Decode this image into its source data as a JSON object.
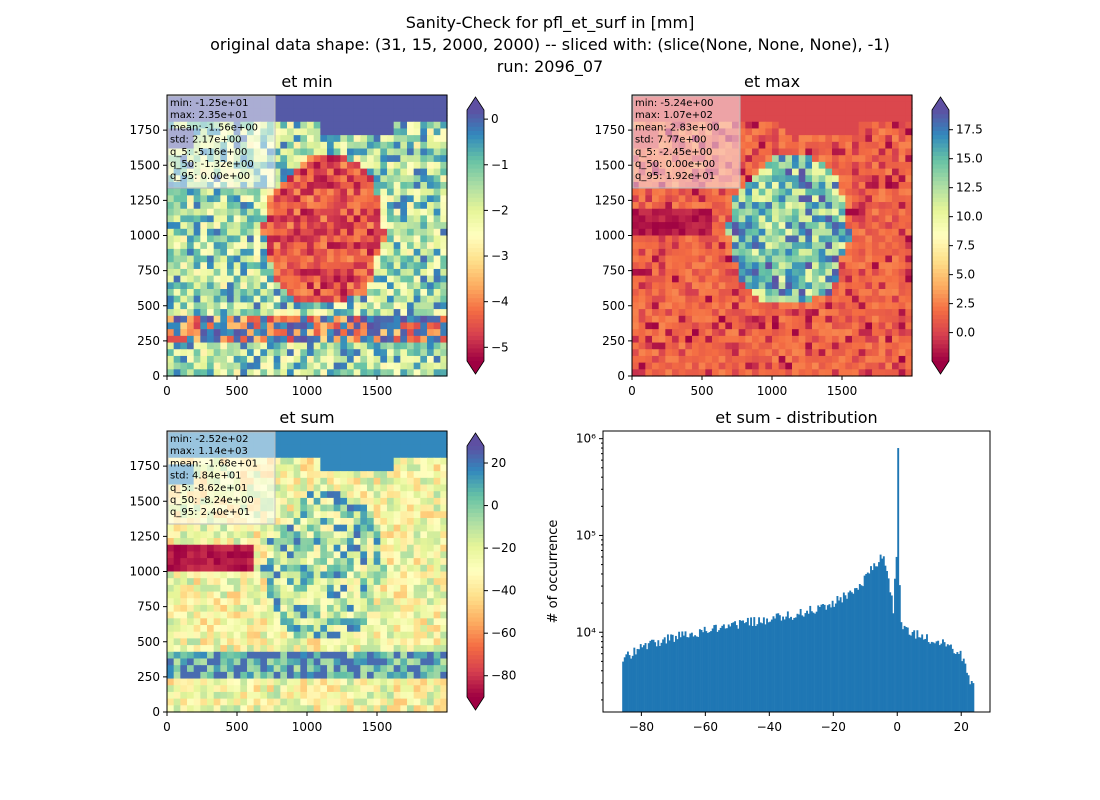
{
  "figure": {
    "title_lines": [
      "Sanity-Check for pfl_et_surf in [mm]",
      "original data shape: (31, 15, 2000, 2000) -- sliced with: (slice(None, None, None), -1)",
      "run: 2096_07"
    ]
  },
  "chart_data": [
    {
      "type": "heatmap",
      "title": "et min",
      "xlim": [
        0,
        2000
      ],
      "ylim": [
        0,
        2000
      ],
      "xticks": [
        "0",
        "500",
        "1000",
        "1500"
      ],
      "yticks": [
        "0",
        "250",
        "500",
        "750",
        "1000",
        "1250",
        "1500",
        "1750"
      ],
      "colormap": "Spectral",
      "colorbar": {
        "range": [
          -5.3,
          0.2
        ],
        "extend": "both",
        "ticks": [
          "0",
          "−1",
          "−2",
          "−3",
          "−4",
          "−5"
        ]
      },
      "stats": [
        "min: -1.25e+01",
        "max: 2.35e+01",
        "mean: -1.56e+00",
        "std: 2.17e+00",
        "q_5: -5.16e+00",
        "q_50: -1.32e+00",
        "q_95: 0.00e+00"
      ]
    },
    {
      "type": "heatmap",
      "title": "et max",
      "xlim": [
        0,
        2000
      ],
      "ylim": [
        0,
        2000
      ],
      "xticks": [
        "0",
        "500",
        "1000",
        "1500"
      ],
      "yticks": [
        "0",
        "250",
        "500",
        "750",
        "1000",
        "1250",
        "1500",
        "1750"
      ],
      "colormap": "Spectral",
      "colorbar": {
        "range": [
          -2.45,
          19.2
        ],
        "extend": "both",
        "ticks": [
          "0.0",
          "2.5",
          "5.0",
          "7.5",
          "10.0",
          "12.5",
          "15.0",
          "17.5"
        ]
      },
      "stats": [
        "min: -5.24e+00",
        "max: 1.07e+02",
        "mean: 2.83e+00",
        "std: 7.77e+00",
        "q_5: -2.45e+00",
        "q_50: 0.00e+00",
        "q_95: 1.92e+01"
      ]
    },
    {
      "type": "heatmap",
      "title": "et sum",
      "xlim": [
        0,
        2000
      ],
      "ylim": [
        0,
        2000
      ],
      "xticks": [
        "0",
        "500",
        "1000",
        "1500"
      ],
      "yticks": [
        "0",
        "250",
        "500",
        "750",
        "1000",
        "1250",
        "1500",
        "1750"
      ],
      "colormap": "Spectral",
      "colorbar": {
        "range": [
          -90,
          28
        ],
        "extend": "both",
        "ticks": [
          "20",
          "0",
          "−20",
          "−40",
          "−60",
          "−80"
        ]
      },
      "stats": [
        "min: -2.52e+02",
        "max: 1.14e+03",
        "mean: -1.68e+01",
        "std: 4.84e+01",
        "q_5: -8.62e+01",
        "q_50: -8.24e+00",
        "q_95: 2.40e+01"
      ]
    },
    {
      "type": "bar",
      "title": "et sum - distribution",
      "ylabel": "# of occurrence",
      "xlabel": "",
      "yscale": "log",
      "xlim": [
        -92,
        29
      ],
      "ylim": [
        1500,
        1200000
      ],
      "xticks": [
        "−80",
        "−60",
        "−40",
        "−20",
        "0",
        "20"
      ],
      "yticks": [
        "10⁴",
        "10⁵",
        "10⁶"
      ],
      "color": "#1f77b4",
      "x": [
        -85,
        -80,
        -75,
        -70,
        -65,
        -60,
        -55,
        -50,
        -45,
        -40,
        -35,
        -30,
        -25,
        -20,
        -15,
        -10,
        -8,
        -6,
        -5,
        -4,
        -3,
        -2,
        -1,
        0,
        1,
        2,
        5,
        10,
        15,
        20,
        23
      ],
      "values": [
        5500,
        7000,
        8000,
        9000,
        9500,
        10500,
        11500,
        12000,
        13000,
        13500,
        14500,
        16000,
        17500,
        20000,
        25000,
        35000,
        45000,
        55000,
        60000,
        58000,
        40000,
        25000,
        15000,
        800000,
        12000,
        11000,
        10000,
        8500,
        7500,
        6000,
        3000
      ]
    }
  ]
}
